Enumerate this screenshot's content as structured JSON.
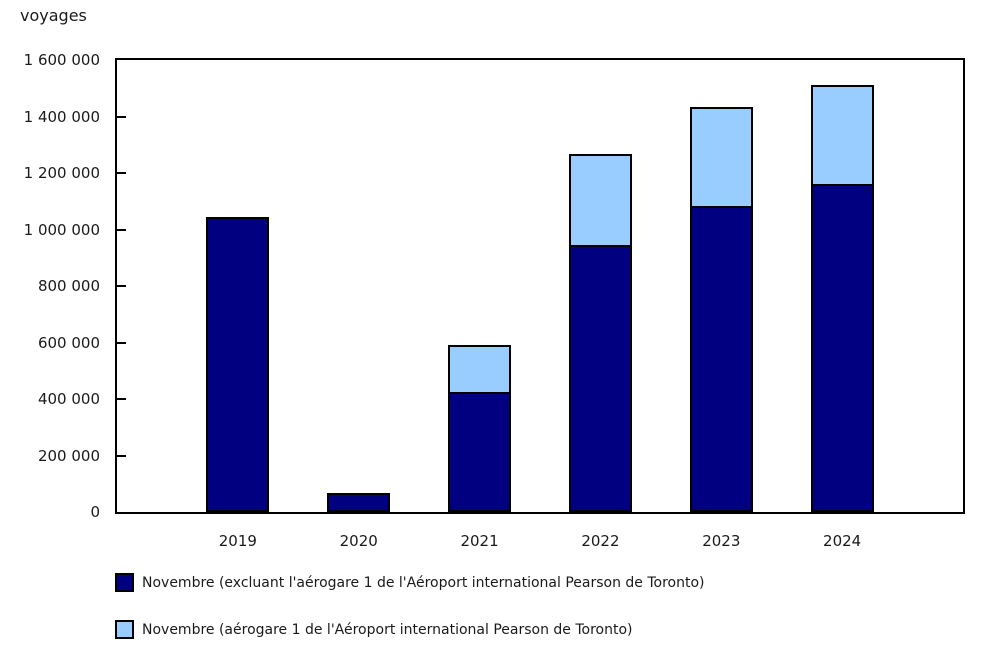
{
  "chart_data": {
    "type": "bar",
    "stacked": true,
    "title": "voyages",
    "ylabel": "voyages",
    "xlabel": "",
    "categories": [
      "2019",
      "2020",
      "2021",
      "2022",
      "2023",
      "2024"
    ],
    "series": [
      {
        "name": "Novembre (excluant l'aérogare 1 de l'Aéroport international Pearson de Toronto)",
        "color": "#000080",
        "values": [
          1045000,
          68000,
          425000,
          945000,
          1085000,
          1160000
        ]
      },
      {
        "name": "Novembre (aérogare 1 de l'Aéroport international Pearson de Toronto)",
        "color": "#99ccff",
        "values": [
          0,
          0,
          175000,
          330000,
          355000,
          360000
        ]
      }
    ],
    "ylim": [
      0,
      1600000
    ],
    "ytick_interval": 200000,
    "ytick_labels": [
      "0",
      "200 000",
      "400 000",
      "600 000",
      "800 000",
      "1 000 000",
      "1 200 000",
      "1 400 000",
      "1 600 000"
    ],
    "grid": false,
    "legend_position": "bottom-left",
    "colors": {
      "axis": "#000000",
      "text": "#1a1a1a",
      "background": "#ffffff",
      "series_dark": "#000080",
      "series_light": "#99ccff"
    }
  }
}
